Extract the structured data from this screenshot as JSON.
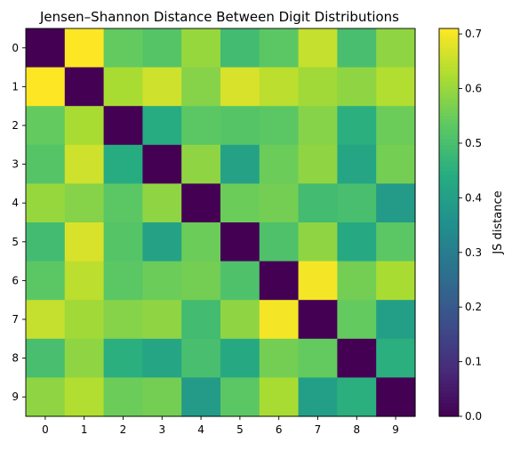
{
  "chart_data": {
    "type": "heatmap",
    "title": "Jensen–Shannon Distance Between Digit Distributions",
    "x_categories": [
      "0",
      "1",
      "2",
      "3",
      "4",
      "5",
      "6",
      "7",
      "8",
      "9"
    ],
    "y_categories": [
      "0",
      "1",
      "2",
      "3",
      "4",
      "5",
      "6",
      "7",
      "8",
      "9"
    ],
    "values": [
      [
        0.0,
        0.71,
        0.54,
        0.52,
        0.6,
        0.49,
        0.53,
        0.65,
        0.5,
        0.59
      ],
      [
        0.71,
        0.0,
        0.62,
        0.66,
        0.58,
        0.67,
        0.64,
        0.61,
        0.59,
        0.63
      ],
      [
        0.54,
        0.62,
        0.0,
        0.44,
        0.53,
        0.52,
        0.53,
        0.58,
        0.45,
        0.55
      ],
      [
        0.52,
        0.66,
        0.44,
        0.0,
        0.59,
        0.41,
        0.55,
        0.59,
        0.42,
        0.56
      ],
      [
        0.6,
        0.58,
        0.53,
        0.59,
        0.0,
        0.55,
        0.56,
        0.49,
        0.5,
        0.39
      ],
      [
        0.49,
        0.67,
        0.52,
        0.41,
        0.55,
        0.0,
        0.51,
        0.59,
        0.43,
        0.53
      ],
      [
        0.53,
        0.64,
        0.53,
        0.55,
        0.56,
        0.51,
        0.0,
        0.7,
        0.56,
        0.62
      ],
      [
        0.65,
        0.61,
        0.58,
        0.59,
        0.49,
        0.59,
        0.7,
        0.0,
        0.54,
        0.4
      ],
      [
        0.5,
        0.59,
        0.45,
        0.42,
        0.5,
        0.43,
        0.56,
        0.54,
        0.0,
        0.45
      ],
      [
        0.59,
        0.63,
        0.55,
        0.56,
        0.39,
        0.53,
        0.62,
        0.4,
        0.45,
        0.0
      ]
    ],
    "colorscale": "viridis",
    "vmin": 0.0,
    "vmax": 0.71,
    "colorbar_label": "JS distance",
    "colorbar_ticks": [
      "0.0",
      "0.1",
      "0.2",
      "0.3",
      "0.4",
      "0.5",
      "0.6",
      "0.7"
    ]
  }
}
